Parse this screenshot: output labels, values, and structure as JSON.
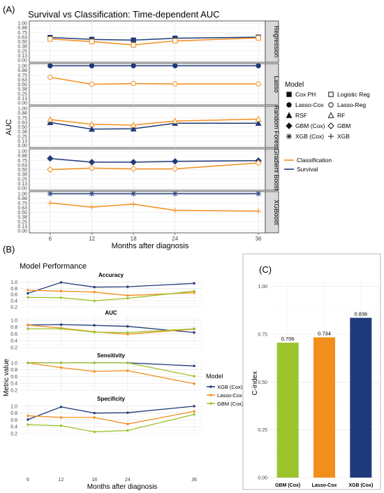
{
  "panel_labels": {
    "a": "(A)",
    "b": "(B)",
    "c": "(C)"
  },
  "colors": {
    "survival": "#1f3a7a",
    "classification": "#f28e1c",
    "xgb": "#1f3a7a",
    "lasso": "#f28e1c",
    "gbm": "#9cc42c"
  },
  "chart_data": [
    {
      "type": "line",
      "title": "Survival vs Classification: Time-dependent AUC",
      "xlabel": "Months after diagnosis",
      "ylabel": "AUC",
      "x": [
        6,
        12,
        18,
        24,
        36
      ],
      "ylim": [
        0,
        1
      ],
      "yticks": [
        "0.00",
        "0.25",
        "0.50",
        "0.75",
        "1.00"
      ],
      "grid": true,
      "facets": [
        {
          "label": "Regression",
          "series": [
            {
              "group": "Survival",
              "marker": "square",
              "values": [
                0.61,
                0.56,
                0.54,
                0.59,
                0.62
              ]
            },
            {
              "group": "Classification",
              "marker": "square-open",
              "values": [
                0.57,
                0.5,
                0.41,
                0.52,
                0.6
              ]
            }
          ]
        },
        {
          "label": "Lasso",
          "series": [
            {
              "group": "Survival",
              "marker": "circle",
              "values": [
                1.0,
                1.0,
                1.0,
                1.0,
                1.0
              ]
            },
            {
              "group": "Classification",
              "marker": "circle-open",
              "values": [
                0.69,
                0.5,
                0.52,
                0.51,
                0.51
              ]
            }
          ]
        },
        {
          "label": "Random Forest",
          "series": [
            {
              "group": "Survival",
              "marker": "triangle",
              "values": [
                0.62,
                0.44,
                0.45,
                0.6,
                0.6
              ]
            },
            {
              "group": "Classification",
              "marker": "triangle-open",
              "values": [
                0.7,
                0.57,
                0.55,
                0.66,
                0.71
              ]
            }
          ]
        },
        {
          "label": "Gradient Boost",
          "series": [
            {
              "group": "Survival",
              "marker": "diamond",
              "values": [
                0.8,
                0.7,
                0.7,
                0.72,
                0.74
              ]
            },
            {
              "group": "Classification",
              "marker": "diamond-open",
              "values": [
                0.5,
                0.54,
                0.52,
                0.52,
                0.68
              ]
            }
          ]
        },
        {
          "label": "XGBoost",
          "series": [
            {
              "group": "Survival",
              "marker": "asterisk",
              "values": [
                1.0,
                1.0,
                1.0,
                1.0,
                1.0
              ]
            },
            {
              "group": "Classification",
              "marker": "plus",
              "values": [
                0.75,
                0.64,
                0.72,
                0.55,
                0.53
              ]
            }
          ]
        }
      ],
      "legend_title": "Model",
      "legend_placement": "right",
      "legend_models": [
        {
          "label": "Cox PH",
          "marker": "square"
        },
        {
          "label": "Logistic Reg",
          "marker": "square-open"
        },
        {
          "label": "Lasso-Cox",
          "marker": "circle"
        },
        {
          "label": "Lasso-Reg",
          "marker": "circle-open"
        },
        {
          "label": "RSF",
          "marker": "triangle"
        },
        {
          "label": "RF",
          "marker": "triangle-open"
        },
        {
          "label": "GBM (Cox)",
          "marker": "diamond"
        },
        {
          "label": "GBM",
          "marker": "diamond-open"
        },
        {
          "label": "XGB (Cox)",
          "marker": "asterisk"
        },
        {
          "label": "XGB",
          "marker": "plus"
        }
      ],
      "legend_groups": [
        {
          "label": "Classification",
          "color": "#f28e1c"
        },
        {
          "label": "Survival",
          "color": "#1f3a7a"
        }
      ]
    },
    {
      "type": "line",
      "title": "Model Performance",
      "xlabel": "Months after diagnosis",
      "ylabel": "Metric value",
      "x": [
        6,
        12,
        18,
        24,
        36
      ],
      "ylim": [
        0.2,
        1.1
      ],
      "yticks": [
        "0.2",
        "0.4",
        "0.6",
        "0.8",
        "1.0"
      ],
      "grid": true,
      "facets": [
        {
          "label": "Accuracy",
          "series": [
            {
              "name": "XGB (Cox)",
              "values": [
                0.64,
                0.99,
                0.84,
                0.85,
                0.96
              ]
            },
            {
              "name": "Lasso-Cox",
              "values": [
                0.74,
                0.71,
                0.68,
                0.57,
                0.66
              ]
            },
            {
              "name": "GBM (Cox)",
              "values": [
                0.51,
                0.5,
                0.4,
                0.48,
                0.71
              ]
            }
          ]
        },
        {
          "label": "AUC",
          "series": [
            {
              "name": "XGB (Cox)",
              "values": [
                0.86,
                0.87,
                0.85,
                0.82,
                0.64
              ]
            },
            {
              "name": "Lasso-Cox",
              "values": [
                0.86,
                0.77,
                0.66,
                0.59,
                0.74
              ]
            },
            {
              "name": "GBM (Cox)",
              "values": [
                0.75,
                0.75,
                0.65,
                0.64,
                0.75
              ]
            }
          ]
        },
        {
          "label": "Sensitivity",
          "series": [
            {
              "name": "XGB (Cox)",
              "values": [
                1.0,
                1.0,
                1.0,
                1.0,
                0.91
              ]
            },
            {
              "name": "Lasso-Cox",
              "values": [
                1.0,
                0.86,
                0.75,
                0.77,
                0.39
              ]
            },
            {
              "name": "GBM (Cox)",
              "values": [
                1.0,
                1.0,
                1.0,
                1.0,
                0.61
              ]
            }
          ]
        },
        {
          "label": "Specificity",
          "series": [
            {
              "name": "XGB (Cox)",
              "values": [
                0.61,
                0.98,
                0.8,
                0.81,
                1.0
              ]
            },
            {
              "name": "Lasso-Cox",
              "values": [
                0.72,
                0.67,
                0.67,
                0.48,
                0.85
              ]
            },
            {
              "name": "GBM (Cox)",
              "values": [
                0.46,
                0.43,
                0.25,
                0.29,
                0.76
              ]
            }
          ]
        }
      ],
      "legend_title": "Model",
      "legend_placement": "right",
      "legend": [
        {
          "label": "XGB (Cox)",
          "color": "#1f3a7a"
        },
        {
          "label": "Lasso-Cox",
          "color": "#f28e1c"
        },
        {
          "label": "GBM (Cox)",
          "color": "#9cc42c"
        }
      ]
    },
    {
      "type": "bar",
      "title": "",
      "xlabel": "",
      "ylabel": "C-index",
      "categories": [
        "GBM (Cox)",
        "Lasso-Cox",
        "XGB (Cox)"
      ],
      "values": [
        0.706,
        0.734,
        0.836
      ],
      "data_labels": [
        "0.706",
        "0.734",
        "0.836"
      ],
      "colors": [
        "#9cc42c",
        "#f28e1c",
        "#1f3a7a"
      ],
      "ylim": [
        0,
        1.05
      ],
      "yticks": [
        "0.00",
        "0.25",
        "0.50",
        "0.75",
        "1.00"
      ],
      "grid": true
    }
  ]
}
